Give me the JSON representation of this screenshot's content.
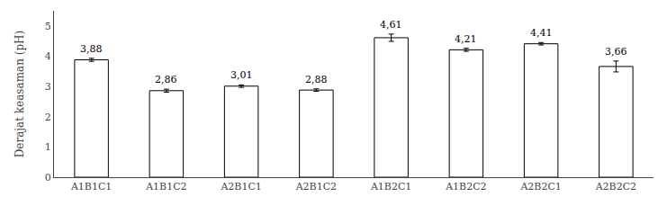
{
  "chart_data": {
    "type": "bar",
    "categories": [
      "A1B1C1",
      "A1B1C2",
      "A2B1C1",
      "A2B1C2",
      "A1B2C1",
      "A1B2C2",
      "A2B2C1",
      "A2B2C2"
    ],
    "values": [
      3.88,
      2.86,
      3.01,
      2.88,
      4.61,
      4.21,
      4.41,
      3.66
    ],
    "errors": [
      0.05,
      0.05,
      0.04,
      0.04,
      0.12,
      0.05,
      0.04,
      0.18
    ],
    "value_labels": [
      "3,88",
      "2,86",
      "3,01",
      "2,88",
      "4,61",
      "4,21",
      "4,41",
      "3,66"
    ],
    "data_labels": true,
    "color": "#ffffff",
    "ylabel": "Derajat keasaman (pH)",
    "ylim": [
      0,
      5.5
    ],
    "yticks": [
      0,
      1,
      2,
      3,
      4,
      5
    ],
    "grid": false
  }
}
